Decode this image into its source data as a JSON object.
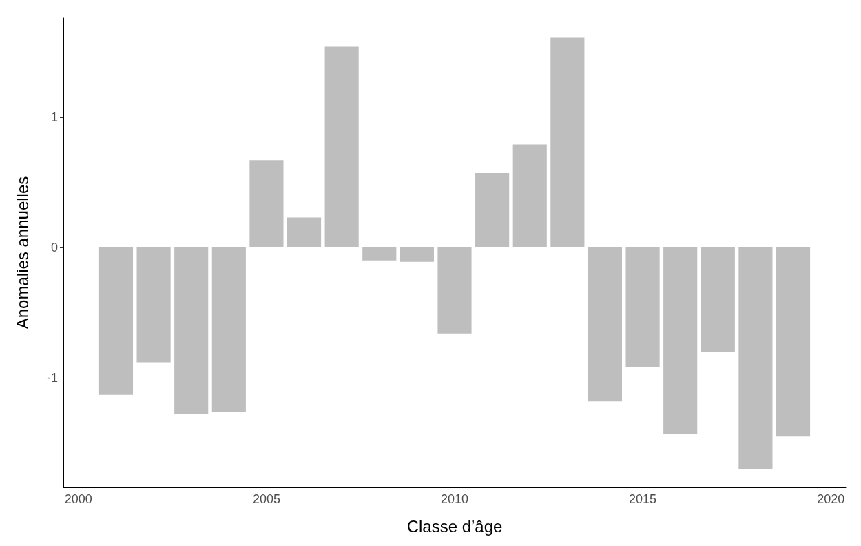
{
  "chart_data": {
    "type": "bar",
    "xlabel": "Classe d’âge",
    "ylabel": "Anomalies annuelles",
    "x": [
      2001,
      2002,
      2003,
      2004,
      2005,
      2006,
      2007,
      2008,
      2009,
      2010,
      2011,
      2012,
      2013,
      2014,
      2015,
      2016,
      2017,
      2018,
      2019
    ],
    "values": [
      -1.13,
      -0.88,
      -1.28,
      -1.26,
      0.67,
      0.23,
      1.54,
      -0.1,
      -0.11,
      -0.66,
      0.57,
      0.79,
      1.61,
      -1.18,
      -0.92,
      -1.43,
      -0.8,
      -1.7,
      -1.45
    ],
    "color": "#bebebe",
    "xlim": [
      1999.6,
      2020.4
    ],
    "xticks": [
      2000,
      2005,
      2010,
      2015,
      2020
    ],
    "ylim": [
      -1.84,
      1.76
    ],
    "yticks": [
      -1,
      0,
      1
    ]
  }
}
